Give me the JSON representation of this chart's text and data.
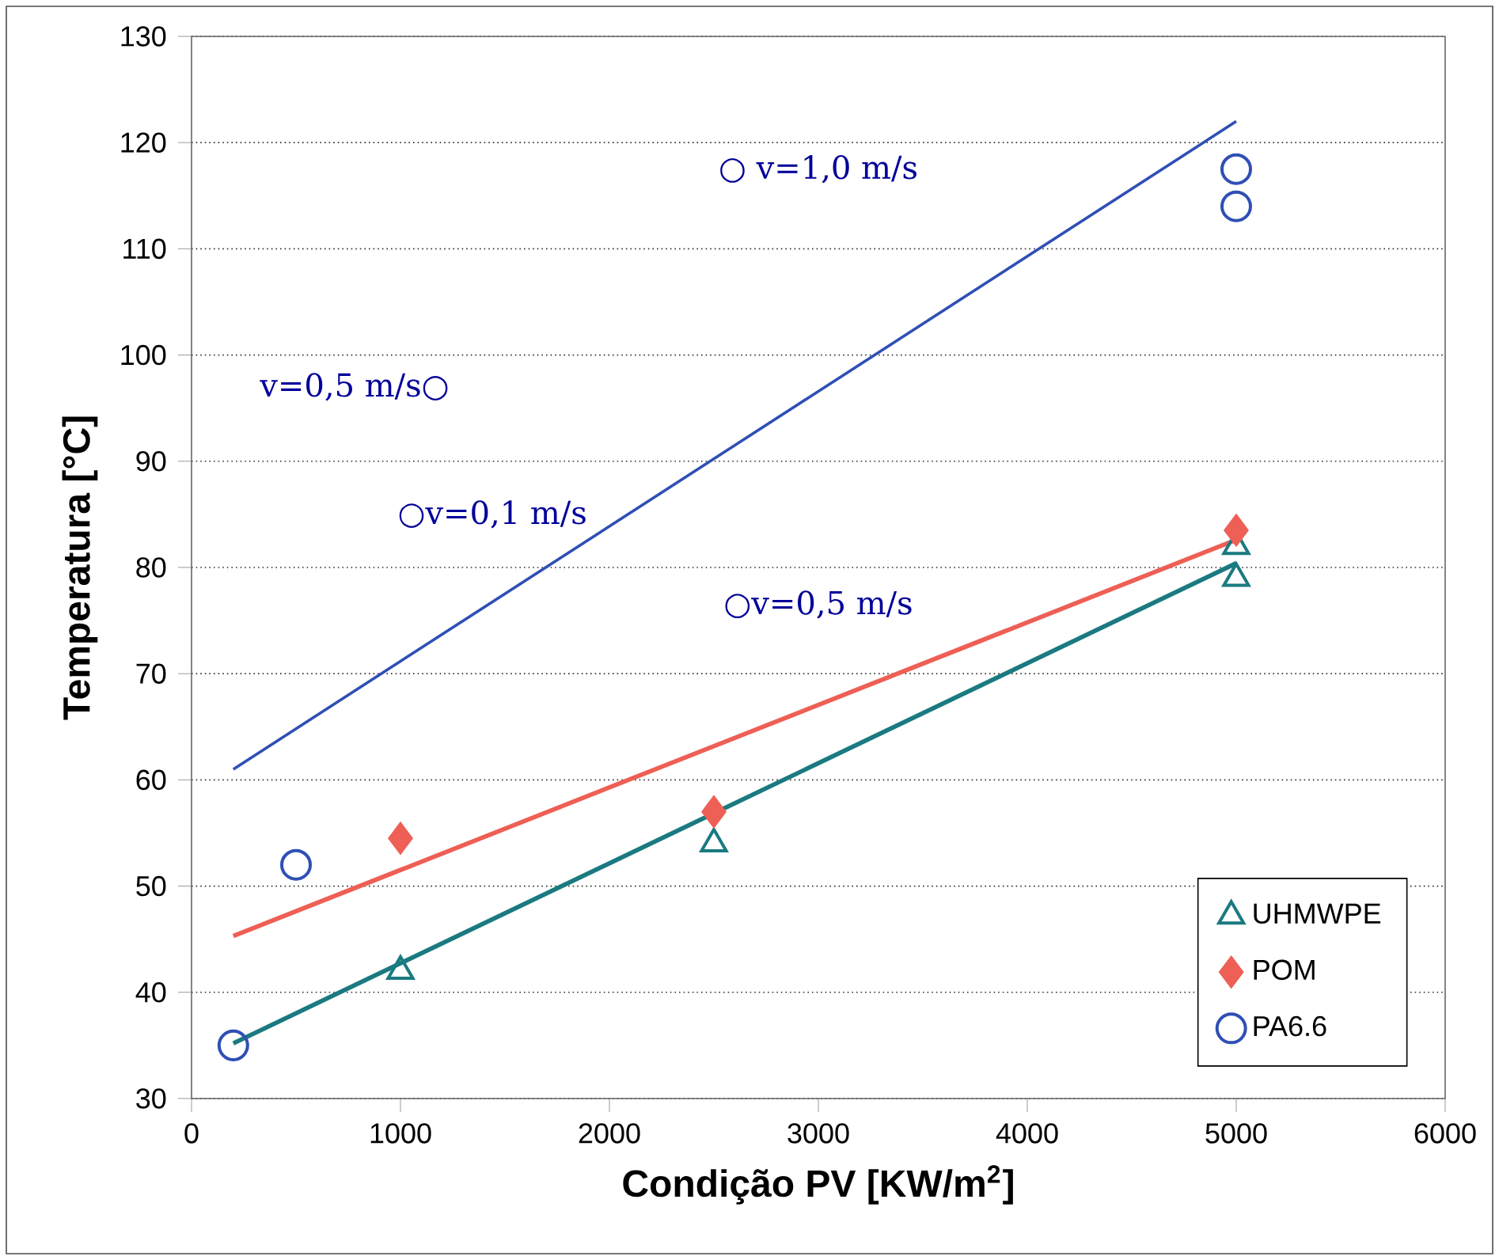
{
  "chart_data": {
    "type": "scatter",
    "xlabel": "Condição PV [KW/m$^{2}$]",
    "ylabel": "Temperatura [°C]",
    "xlim": [
      0,
      6000
    ],
    "ylim": [
      30,
      130
    ],
    "xticks": [
      0,
      1000,
      2000,
      3000,
      4000,
      5000,
      6000
    ],
    "yticks": [
      30,
      40,
      50,
      60,
      70,
      80,
      90,
      100,
      110,
      120,
      130
    ],
    "grid": "y",
    "legend": "bottom right",
    "series": [
      {
        "name": "UHMWPE",
        "marker": "triangle",
        "color": "#1a7a80",
        "x": [
          1000,
          2500,
          5000,
          5000
        ],
        "values": [
          42,
          54,
          79,
          82
        ]
      },
      {
        "name": "POM",
        "marker": "diamond",
        "color": "#ee5f55",
        "x": [
          1000,
          2500,
          5000
        ],
        "values": [
          54.5,
          57,
          83.5
        ]
      },
      {
        "name": "PA6.6",
        "marker": "circle",
        "color": "#2f4fb5",
        "x": [
          200,
          500,
          5000,
          5000
        ],
        "values": [
          35,
          52,
          114,
          117.5
        ]
      },
      {
        "type": "line",
        "color": "#1a7a80",
        "x": [
          200,
          5000
        ],
        "values": [
          35.2,
          80.4
        ]
      },
      {
        "type": "line",
        "color": "#ee5f55",
        "x": [
          200,
          5000
        ],
        "values": [
          45.3,
          82.6
        ]
      },
      {
        "type": "line",
        "color": "#2f4fb5",
        "x": [
          200,
          5000
        ],
        "values": [
          61,
          122
        ]
      }
    ],
    "annotations": [
      "○v=0,5 m/s",
      "○v=0,1 m/s",
      "v=0,5 m/s○",
      "○ v=1,0 m/s"
    ]
  }
}
